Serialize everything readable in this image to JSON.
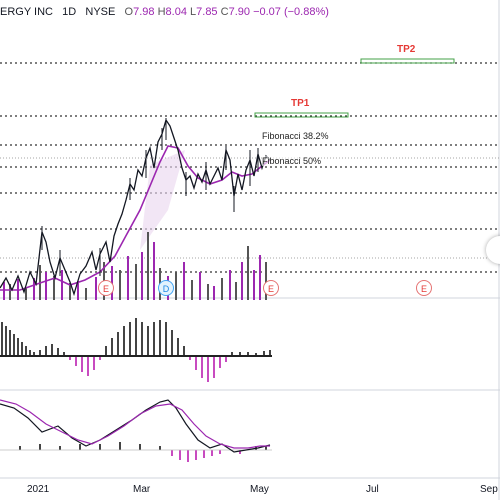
{
  "header": {
    "symbol": "ERGY INC",
    "interval": "1D",
    "exchange": "NYSE",
    "o_label": "O",
    "o_val": "7.98",
    "h_label": "H",
    "h_val": "8.04",
    "l_label": "L",
    "l_val": "7.85",
    "c_label": "C",
    "c_val": "7.90",
    "change": "−0.07 (−0.88%)"
  },
  "annotations": {
    "tp1": "TP1",
    "tp2": "TP2",
    "fib382": "Fibonacci 38.2%",
    "fib50": "Fibonacci 50%"
  },
  "events": [
    {
      "label": "E",
      "kind": "earnings",
      "color": "#e53935"
    },
    {
      "label": "D",
      "kind": "dividend",
      "color": "#1e88e5"
    },
    {
      "label": "E",
      "kind": "earnings",
      "color": "#e53935"
    },
    {
      "label": "E",
      "kind": "earnings",
      "color": "#e53935"
    }
  ],
  "x_axis": [
    "2021",
    "Mar",
    "May",
    "Jul",
    "Sep"
  ],
  "colors": {
    "tp_line": "#43a047",
    "tp_text": "#e53935",
    "price": "#131722",
    "ma": "#9c27b0",
    "histogram_pos": "#444444",
    "histogram_neg": "#c84bc0",
    "volume": "#9c27b0"
  }
}
